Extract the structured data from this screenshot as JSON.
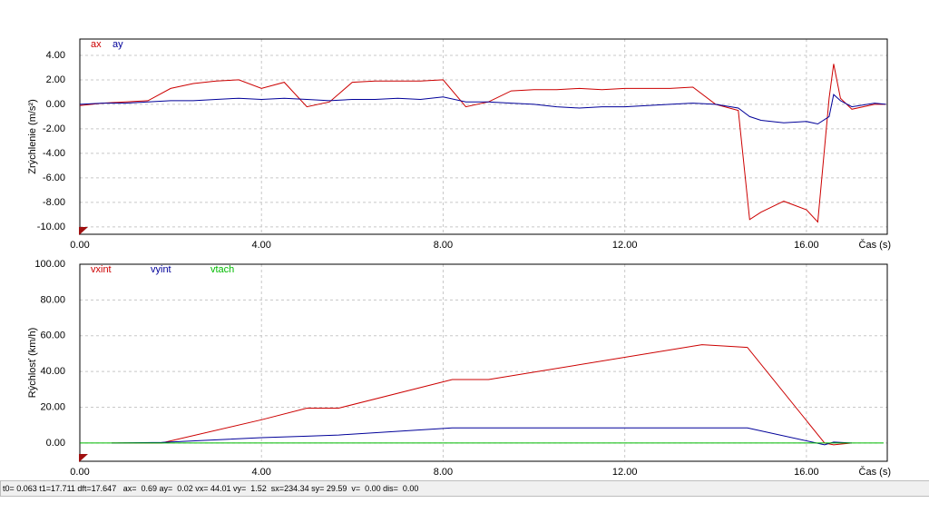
{
  "chart_data": [
    {
      "type": "line",
      "ylabel": "Zrýchlenie (m/s²)",
      "xlabel": "Čas (s)",
      "grid": true,
      "x": [
        0,
        0.5,
        1,
        1.5,
        2,
        2.5,
        3,
        3.5,
        4,
        4.5,
        5,
        5.5,
        6,
        6.5,
        7,
        7.5,
        8,
        8.5,
        9,
        9.5,
        10,
        10.5,
        11,
        11.5,
        12,
        12.5,
        13,
        13.5,
        14,
        14.5,
        14.75,
        15,
        15.5,
        16,
        16.25,
        16.5,
        16.6,
        16.75,
        17,
        17.5,
        17.75
      ],
      "series": [
        {
          "name": "ax",
          "color": "#cc0000",
          "values": [
            -0.1,
            0.1,
            0.2,
            0.3,
            1.3,
            1.7,
            1.9,
            2.0,
            1.3,
            1.8,
            -0.2,
            0.2,
            1.8,
            1.9,
            1.9,
            1.9,
            2.0,
            -0.2,
            0.2,
            1.1,
            1.2,
            1.2,
            1.3,
            1.2,
            1.3,
            1.3,
            1.3,
            1.4,
            0.0,
            -0.5,
            -9.4,
            -8.8,
            -7.9,
            -8.6,
            -9.6,
            0.5,
            3.3,
            0.5,
            -0.4,
            0.0,
            0.0
          ]
        },
        {
          "name": "ay",
          "color": "#000099",
          "values": [
            0,
            0.1,
            0.1,
            0.2,
            0.3,
            0.3,
            0.4,
            0.5,
            0.4,
            0.5,
            0.4,
            0.3,
            0.4,
            0.4,
            0.5,
            0.4,
            0.6,
            0.2,
            0.2,
            0.1,
            0,
            -0.2,
            -0.3,
            -0.2,
            -0.2,
            -0.1,
            0,
            0.1,
            0,
            -0.3,
            -1.0,
            -1.3,
            -1.5,
            -1.4,
            -1.6,
            -1.0,
            0.8,
            0.3,
            -0.2,
            0.1,
            0
          ]
        }
      ],
      "xlim": [
        0,
        17.78
      ],
      "ylim": [
        -10.6,
        5.33
      ],
      "xticks": [
        {
          "value": 0,
          "label": "0.00"
        },
        {
          "value": 4,
          "label": "4.00"
        },
        {
          "value": 8,
          "label": "8.00"
        },
        {
          "value": 12,
          "label": "12.00"
        },
        {
          "value": 16,
          "label": "16.00"
        }
      ],
      "yticks": [
        {
          "value": 4,
          "label": "4.00"
        },
        {
          "value": 2,
          "label": "2.00"
        },
        {
          "value": 0,
          "label": "0.00"
        },
        {
          "value": -2,
          "label": "-2.00"
        },
        {
          "value": -4,
          "label": "-4.00"
        },
        {
          "value": -6,
          "label": "-6.00"
        },
        {
          "value": -8,
          "label": "-8.00"
        },
        {
          "value": -10,
          "label": "-10.00"
        }
      ]
    },
    {
      "type": "line",
      "ylabel": "Rýchlosť (km/h)",
      "xlabel": "Čas (s)",
      "grid": true,
      "x": [
        0.7,
        1.8,
        4,
        5,
        5.7,
        8.2,
        9,
        13.7,
        14.7,
        16.4,
        16.6,
        17
      ],
      "series": [
        {
          "name": "vxint",
          "color": "#cc0000",
          "values": [
            0,
            0,
            13,
            19.5,
            19.5,
            35.5,
            35.5,
            55,
            53.5,
            0,
            -1,
            0
          ]
        },
        {
          "name": "vyint",
          "color": "#000099",
          "values": [
            0,
            0.3,
            3,
            3.8,
            4.5,
            8.5,
            8.5,
            8.5,
            8.5,
            -1,
            0.5,
            0
          ]
        },
        {
          "name": "vtach",
          "color": "#00bb00",
          "x": [
            0,
            17.7
          ],
          "values": [
            0,
            0
          ]
        }
      ],
      "xlim": [
        0,
        17.78
      ],
      "ylim": [
        -10.2,
        100
      ],
      "xticks": [
        {
          "value": 0,
          "label": "0.00"
        },
        {
          "value": 4,
          "label": "4.00"
        },
        {
          "value": 8,
          "label": "8.00"
        },
        {
          "value": 12,
          "label": "12.00"
        },
        {
          "value": 16,
          "label": "16.00"
        }
      ],
      "yticks": [
        {
          "value": 100,
          "label": "100.00"
        },
        {
          "value": 80,
          "label": "80.00"
        },
        {
          "value": 60,
          "label": "60.00"
        },
        {
          "value": 40,
          "label": "40.00"
        },
        {
          "value": 20,
          "label": "20.00"
        },
        {
          "value": 0,
          "label": "0.00"
        }
      ]
    }
  ],
  "status_bar": {
    "text": "t0= 0.063 t1=17.711 dft=17.647   ax=  0.69 ay=  0.02 vx= 44.01 vy=  1.52  sx=234.34 sy= 29.59  v=  0.00 dis=  0.00"
  }
}
